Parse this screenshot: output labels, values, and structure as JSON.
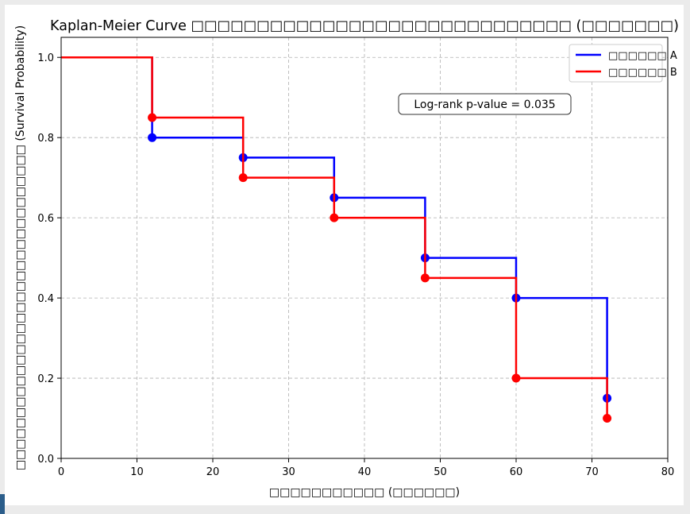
{
  "chart_data": {
    "type": "line",
    "subtype": "step",
    "title": "Kaplan-Meier Curve □□□□□□□□□□□□□□□□□□□□□□□□□□□□□ (□□□□□□□)",
    "xlabel": "□□□□□□□□□□□ (□□□□□□)",
    "ylabel": "□□□□□□□□□□□□□□□□□□□□□□□□□□□□□□□ (Survival Probability)",
    "xlim": [
      0,
      80
    ],
    "ylim": [
      0,
      1.05
    ],
    "xticks": [
      0,
      10,
      20,
      30,
      40,
      50,
      60,
      70,
      80
    ],
    "yticks": [
      0.0,
      0.2,
      0.4,
      0.6,
      0.8,
      1.0
    ],
    "xtick_labels": [
      "0",
      "10",
      "20",
      "30",
      "40",
      "50",
      "60",
      "70",
      "80"
    ],
    "ytick_labels": [
      "0.0",
      "0.2",
      "0.4",
      "0.6",
      "0.8",
      "1.0"
    ],
    "grid": true,
    "legend_position": "top-right",
    "annotation": "Log-rank p-value = 0.035",
    "series": [
      {
        "name": "□□□□□□ A",
        "color": "#0000ff",
        "x": [
          0,
          12,
          24,
          36,
          48,
          60,
          72
        ],
        "y": [
          1.0,
          0.8,
          0.75,
          0.65,
          0.5,
          0.4,
          0.15
        ]
      },
      {
        "name": "□□□□□□ B",
        "color": "#ff0000",
        "x": [
          0,
          12,
          24,
          36,
          48,
          60,
          72
        ],
        "y": [
          1.0,
          0.85,
          0.7,
          0.6,
          0.45,
          0.2,
          0.1
        ]
      }
    ]
  }
}
